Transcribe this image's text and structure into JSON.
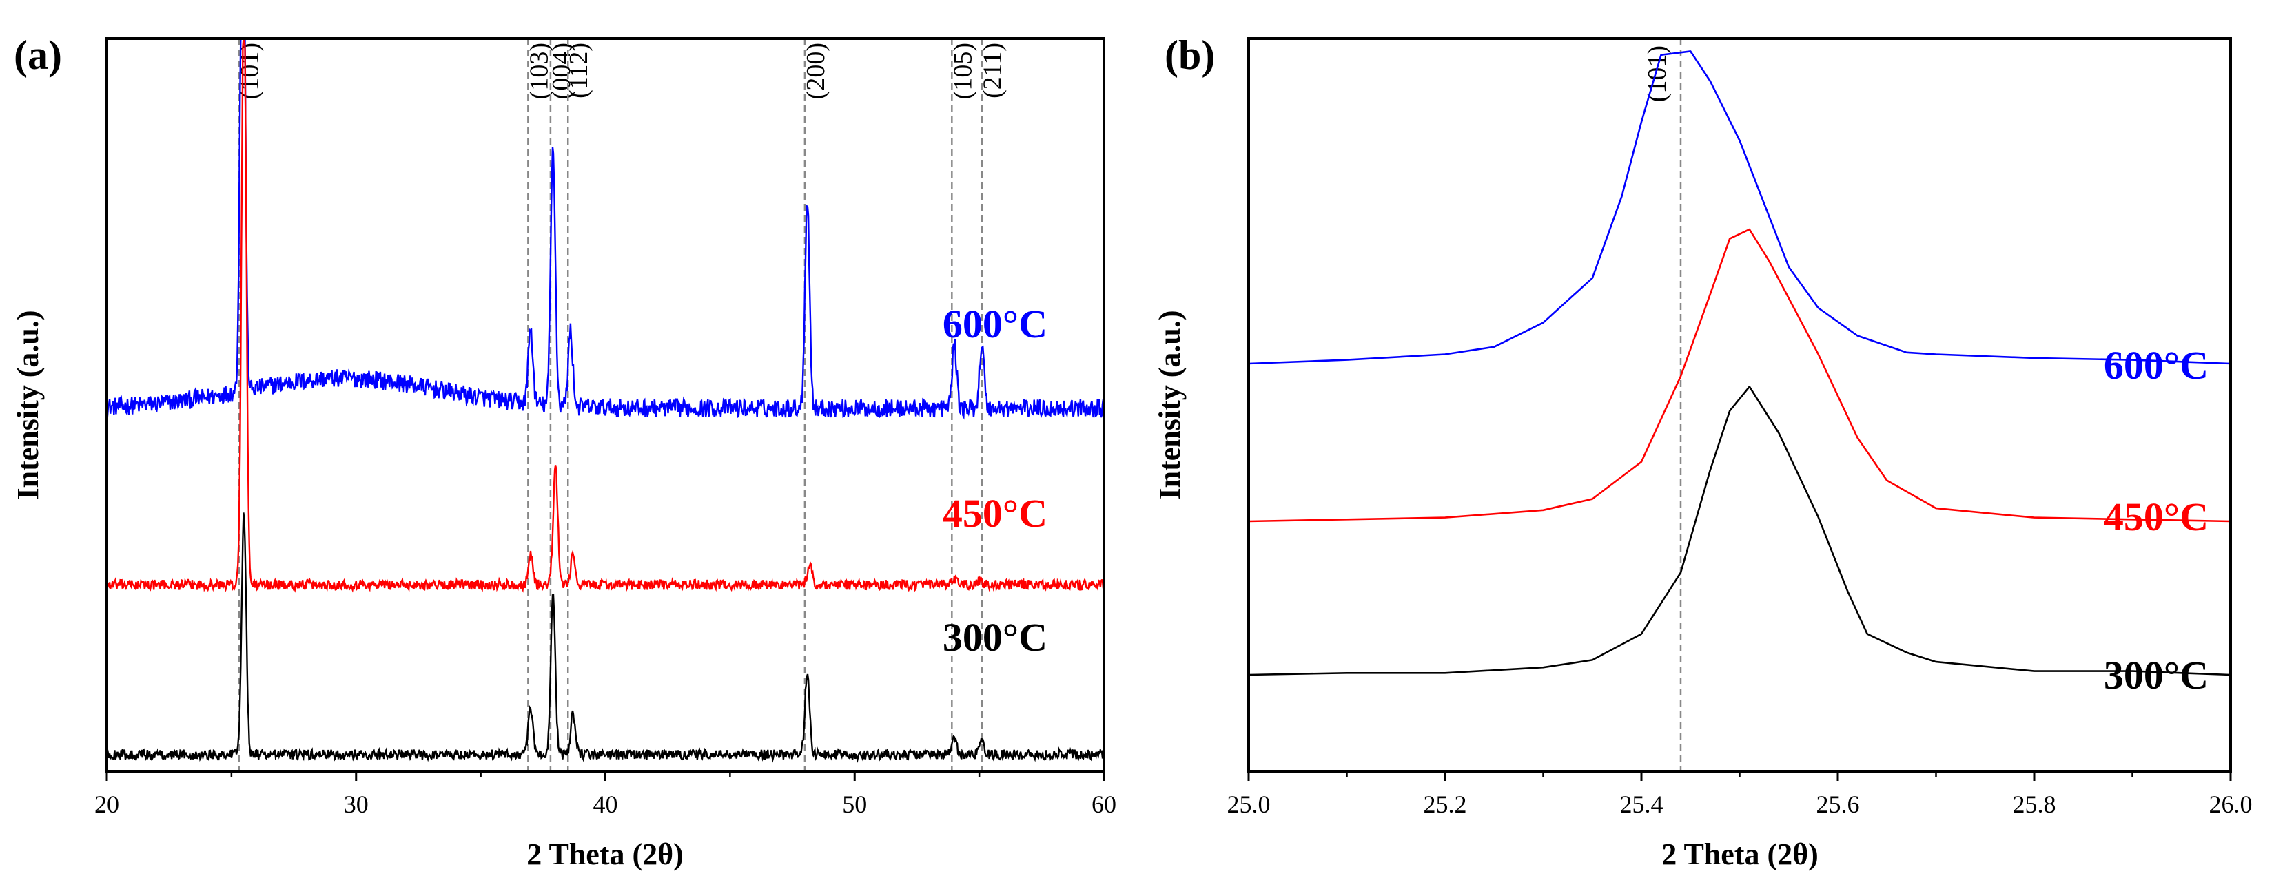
{
  "chart_data": [
    {
      "type": "line",
      "panel_label": "(a)",
      "xlabel": "2 Theta (2θ)",
      "ylabel": "Intensity (a.u.)",
      "xlim": [
        20,
        60
      ],
      "x_ticks": [
        "20",
        "30",
        "40",
        "50",
        "60"
      ],
      "y_ticks": [],
      "reference_lines": [
        {
          "label": "(101)",
          "x": 25.3
        },
        {
          "label": "(103)",
          "x": 36.9
        },
        {
          "label": "(004)",
          "x": 37.8
        },
        {
          "label": "(112)",
          "x": 38.5
        },
        {
          "label": "(200)",
          "x": 48.0
        },
        {
          "label": "(105)",
          "x": 53.9
        },
        {
          "label": "(211)",
          "x": 55.1
        }
      ],
      "series": [
        {
          "name": "600°C",
          "color": "#0000ff",
          "baseline": 2.08,
          "noise": 0.055,
          "hump": {
            "center": 29.5,
            "height": 0.18,
            "width": 5.5
          },
          "peaks": [
            {
              "x": 25.45,
              "height": 3.6
            },
            {
              "x": 37.0,
              "height": 0.45
            },
            {
              "x": 37.9,
              "height": 1.55
            },
            {
              "x": 38.6,
              "height": 0.45
            },
            {
              "x": 48.1,
              "height": 1.25
            },
            {
              "x": 54.0,
              "height": 0.38
            },
            {
              "x": 55.1,
              "height": 0.38
            }
          ]
        },
        {
          "name": "450°C",
          "color": "#ff0000",
          "baseline": 1.02,
          "noise": 0.03,
          "hump": null,
          "peaks": [
            {
              "x": 25.5,
              "height": 3.6
            },
            {
              "x": 37.0,
              "height": 0.18
            },
            {
              "x": 38.0,
              "height": 0.7
            },
            {
              "x": 38.7,
              "height": 0.17
            },
            {
              "x": 48.2,
              "height": 0.12
            },
            {
              "x": 54.0,
              "height": 0.03
            },
            {
              "x": 55.0,
              "height": 0.02
            }
          ]
        },
        {
          "name": "300°C",
          "color": "#000000",
          "baseline": 0.0,
          "noise": 0.03,
          "hump": null,
          "peaks": [
            {
              "x": 25.5,
              "height": 1.45
            },
            {
              "x": 37.0,
              "height": 0.28
            },
            {
              "x": 37.9,
              "height": 0.95
            },
            {
              "x": 38.7,
              "height": 0.25
            },
            {
              "x": 48.1,
              "height": 0.5
            },
            {
              "x": 54.0,
              "height": 0.1
            },
            {
              "x": 55.1,
              "height": 0.1
            }
          ]
        }
      ]
    },
    {
      "type": "line",
      "panel_label": "(b)",
      "xlabel": "2 Theta (2θ)",
      "ylabel": "Intensity (a.u.)",
      "xlim": [
        25.0,
        26.0
      ],
      "x_ticks": [
        "25.0",
        "25.2",
        "25.4",
        "25.6",
        "25.8",
        "26.0"
      ],
      "y_ticks": [],
      "reference_lines": [
        {
          "label": "(101)",
          "x": 25.44
        }
      ],
      "series": [
        {
          "name": "600°C",
          "color": "#0000ff",
          "points": [
            [
              25.0,
              0.0
            ],
            [
              25.1,
              0.02
            ],
            [
              25.2,
              0.05
            ],
            [
              25.25,
              0.09
            ],
            [
              25.3,
              0.22
            ],
            [
              25.35,
              0.46
            ],
            [
              25.38,
              0.9
            ],
            [
              25.4,
              1.3
            ],
            [
              25.42,
              1.66
            ],
            [
              25.45,
              1.68
            ],
            [
              25.47,
              1.52
            ],
            [
              25.5,
              1.2
            ],
            [
              25.55,
              0.52
            ],
            [
              25.58,
              0.3
            ],
            [
              25.62,
              0.15
            ],
            [
              25.67,
              0.06
            ],
            [
              25.7,
              0.05
            ],
            [
              25.8,
              0.03
            ],
            [
              25.9,
              0.02
            ],
            [
              26.0,
              0.0
            ]
          ]
        },
        {
          "name": "450°C",
          "color": "#ff0000",
          "points": [
            [
              25.0,
              0.0
            ],
            [
              25.1,
              0.01
            ],
            [
              25.2,
              0.02
            ],
            [
              25.3,
              0.06
            ],
            [
              25.35,
              0.12
            ],
            [
              25.4,
              0.32
            ],
            [
              25.44,
              0.78
            ],
            [
              25.47,
              1.22
            ],
            [
              25.49,
              1.52
            ],
            [
              25.51,
              1.57
            ],
            [
              25.53,
              1.4
            ],
            [
              25.58,
              0.9
            ],
            [
              25.62,
              0.45
            ],
            [
              25.65,
              0.22
            ],
            [
              25.7,
              0.07
            ],
            [
              25.8,
              0.02
            ],
            [
              25.9,
              0.01
            ],
            [
              26.0,
              0.0
            ]
          ]
        },
        {
          "name": "300°C",
          "color": "#000000",
          "points": [
            [
              25.0,
              0.0
            ],
            [
              25.1,
              0.01
            ],
            [
              25.2,
              0.01
            ],
            [
              25.3,
              0.04
            ],
            [
              25.35,
              0.08
            ],
            [
              25.4,
              0.22
            ],
            [
              25.44,
              0.55
            ],
            [
              25.47,
              1.1
            ],
            [
              25.49,
              1.42
            ],
            [
              25.51,
              1.55
            ],
            [
              25.54,
              1.3
            ],
            [
              25.58,
              0.85
            ],
            [
              25.61,
              0.45
            ],
            [
              25.63,
              0.22
            ],
            [
              25.67,
              0.12
            ],
            [
              25.7,
              0.07
            ],
            [
              25.8,
              0.02
            ],
            [
              25.9,
              0.02
            ],
            [
              26.0,
              0.0
            ]
          ]
        }
      ]
    }
  ]
}
